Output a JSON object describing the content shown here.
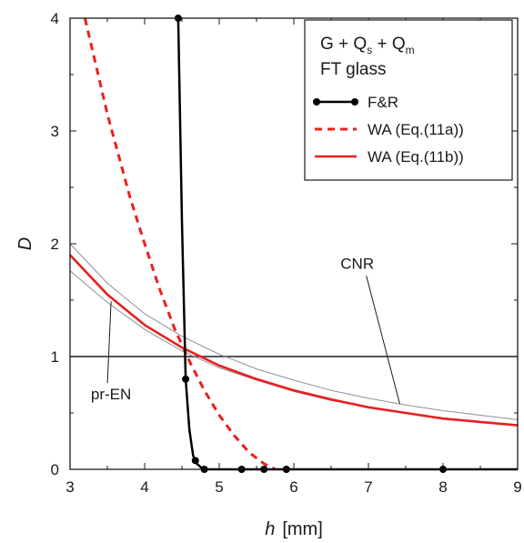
{
  "chart_data": {
    "type": "line",
    "xlabel": "h",
    "xunit": "[mm]",
    "ylabel": "D",
    "xlim": [
      3,
      9
    ],
    "ylim": [
      0,
      4
    ],
    "xticks": [
      "3",
      "4",
      "5",
      "6",
      "7",
      "8",
      "9"
    ],
    "yticks": [
      "0",
      "1",
      "2",
      "3",
      "4"
    ],
    "legend": {
      "placement": "top-right",
      "title_line1": {
        "base1": "G + Q",
        "sub1": "s",
        "base2": " + Q",
        "sub2": "m"
      },
      "title_line2": "FT glass"
    },
    "reference_line": {
      "y": 1,
      "color": "#555555"
    },
    "series": [
      {
        "name": "F&R",
        "style": "solid-markers",
        "color": "#000000",
        "x": [
          4.45,
          4.5,
          4.55,
          4.6,
          4.65,
          4.7,
          4.75,
          4.8,
          5.0,
          5.3,
          5.6,
          5.9,
          8.0,
          9.0
        ],
        "y": [
          4.0,
          2.2,
          0.8,
          0.35,
          0.12,
          0.05,
          0.02,
          0.0,
          0.0,
          0.0,
          0.0,
          0.0,
          0.0,
          0.0
        ],
        "markers_x": [
          4.45,
          4.55,
          4.68,
          4.8,
          5.3,
          5.6,
          5.9,
          8.0
        ]
      },
      {
        "name": "WA (Eq.(11a))",
        "style": "dashed",
        "color": "#e8201f",
        "x": [
          3.2,
          3.5,
          3.8,
          4.0,
          4.2,
          4.4,
          4.6,
          4.8,
          5.0,
          5.2,
          5.4,
          5.6,
          5.75
        ],
        "y": [
          4.0,
          3.15,
          2.42,
          2.0,
          1.6,
          1.25,
          0.96,
          0.7,
          0.48,
          0.3,
          0.15,
          0.05,
          0.0
        ]
      },
      {
        "name": "WA (Eq.(11b))",
        "style": "solid",
        "color": "#e8201f",
        "x": [
          3.0,
          3.5,
          4.0,
          4.5,
          5.0,
          5.5,
          6.0,
          6.5,
          7.0,
          7.5,
          8.0,
          8.5,
          9.0
        ],
        "y": [
          1.9,
          1.55,
          1.28,
          1.08,
          0.92,
          0.8,
          0.7,
          0.62,
          0.55,
          0.5,
          0.45,
          0.42,
          0.39
        ]
      },
      {
        "name": "CNR",
        "style": "thin",
        "color": "#8f8f9c",
        "x": [
          3.0,
          3.5,
          4.0,
          4.5,
          5.0,
          5.5,
          6.0,
          6.5,
          7.0,
          7.5,
          8.0,
          8.5,
          9.0
        ],
        "y": [
          2.0,
          1.65,
          1.38,
          1.18,
          1.02,
          0.89,
          0.79,
          0.7,
          0.63,
          0.57,
          0.52,
          0.48,
          0.44
        ]
      },
      {
        "name": "pr-EN",
        "style": "thin",
        "color": "#8f8f9c",
        "x": [
          3.0,
          3.5,
          4.0,
          4.5,
          5.0,
          5.5,
          6.0,
          6.5,
          7.0,
          7.5,
          8.0,
          8.5,
          9.0
        ],
        "y": [
          1.76,
          1.48,
          1.24,
          1.05,
          0.9,
          0.79,
          0.69,
          0.61,
          0.55,
          0.5,
          0.45,
          0.42,
          0.39
        ]
      }
    ],
    "annotations": [
      {
        "text": "CNR",
        "label_x": 6.85,
        "label_y": 1.78,
        "point_x": 7.42,
        "point_y": 0.58
      },
      {
        "text": "pr-EN",
        "label_x": 3.55,
        "label_y": 0.62,
        "point_x": 3.55,
        "point_y": 1.49
      }
    ]
  }
}
